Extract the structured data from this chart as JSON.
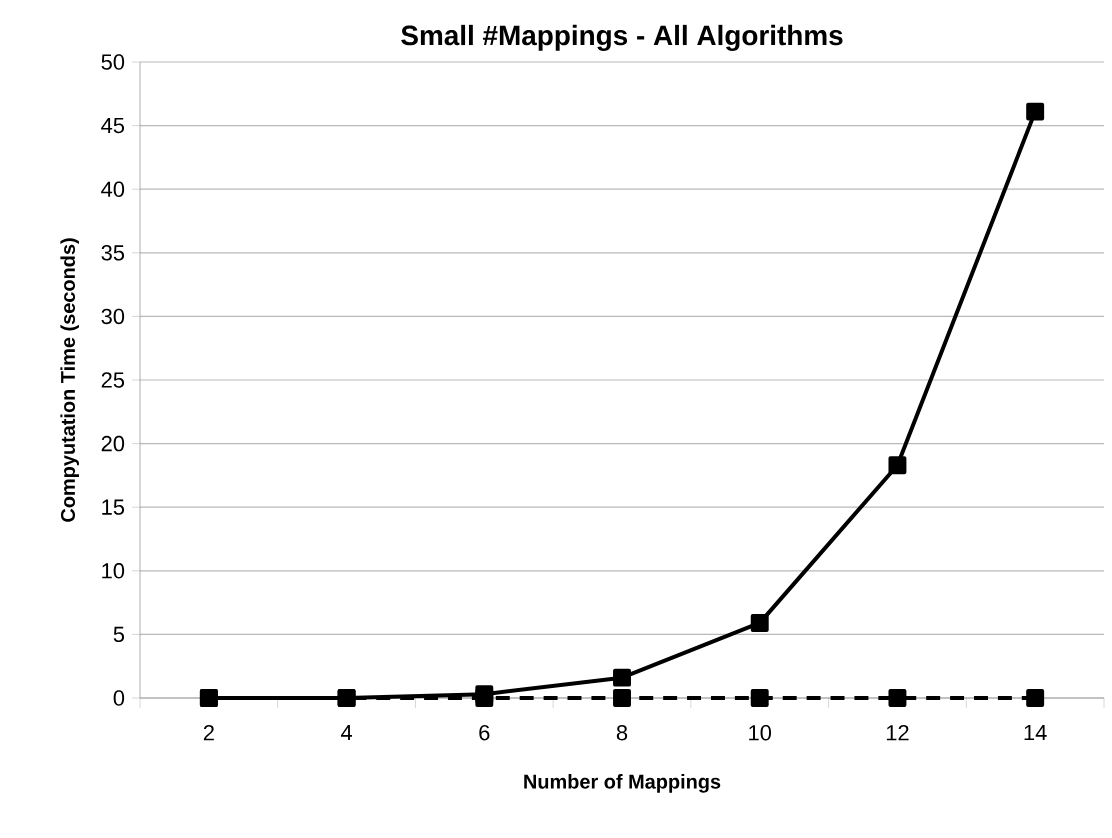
{
  "chart_data": {
    "type": "line",
    "title": "Small #Mappings - All Algorithms",
    "xlabel": "Number of Mappings",
    "ylabel": "Compyutation Time (seconds)",
    "categories": [
      "2",
      "4",
      "6",
      "8",
      "10",
      "12",
      "14"
    ],
    "series": [
      {
        "color": "#000000",
        "line_style": "solid",
        "values": [
          0,
          0,
          0.3,
          1.6,
          5.9,
          18.3,
          46.1
        ]
      },
      {
        "color": "#000000",
        "line_style": "dashed",
        "values": [
          0,
          0,
          0,
          0,
          0,
          0,
          0
        ]
      }
    ],
    "marker": "square",
    "ylim": [
      0,
      50
    ],
    "yticks": [
      0,
      5,
      10,
      15,
      20,
      25,
      30,
      35,
      40,
      45,
      50
    ],
    "grid": "y"
  }
}
